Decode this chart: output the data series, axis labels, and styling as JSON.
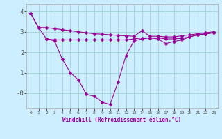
{
  "x": [
    0,
    1,
    2,
    3,
    4,
    5,
    6,
    7,
    8,
    9,
    10,
    11,
    12,
    13,
    14,
    15,
    16,
    17,
    18,
    19,
    20,
    21,
    22,
    23
  ],
  "line1": [
    3.9,
    3.2,
    3.2,
    3.15,
    3.1,
    3.05,
    3.0,
    2.95,
    2.9,
    2.88,
    2.85,
    2.82,
    2.8,
    2.78,
    3.05,
    2.78,
    2.78,
    2.75,
    2.75,
    2.8,
    2.85,
    2.9,
    2.95,
    3.0
  ],
  "line2": [
    3.9,
    3.2,
    2.65,
    2.55,
    1.65,
    1.0,
    0.65,
    -0.05,
    -0.15,
    -0.45,
    -0.55,
    0.55,
    1.85,
    2.55,
    2.65,
    2.7,
    2.65,
    2.42,
    2.52,
    2.6,
    2.75,
    2.85,
    2.9,
    2.95
  ],
  "line3": [
    null,
    null,
    2.65,
    2.6,
    2.6,
    2.6,
    2.6,
    2.6,
    2.6,
    2.6,
    2.6,
    2.6,
    2.6,
    2.65,
    2.7,
    2.7,
    2.7,
    2.65,
    2.65,
    2.68,
    2.75,
    2.85,
    2.9,
    2.95
  ],
  "line_color": "#990099",
  "bg_color": "#cceeff",
  "grid_color": "#99cccc",
  "xlabel": "Windchill (Refroidissement éolien,°C)",
  "ylim": [
    -0.75,
    4.35
  ],
  "xlim": [
    -0.5,
    23.5
  ],
  "ytick_vals": [
    4,
    3,
    2,
    1,
    0
  ],
  "ytick_labels": [
    "4",
    "3",
    "2",
    "1",
    "-0"
  ],
  "xtick_labels": [
    "0",
    "1",
    "2",
    "3",
    "4",
    "5",
    "6",
    "7",
    "8",
    "9",
    "10",
    "11",
    "12",
    "13",
    "14",
    "15",
    "16",
    "17",
    "18",
    "19",
    "20",
    "21",
    "22",
    "23"
  ],
  "marker": "D",
  "markersize": 2.5,
  "linewidth": 0.8
}
